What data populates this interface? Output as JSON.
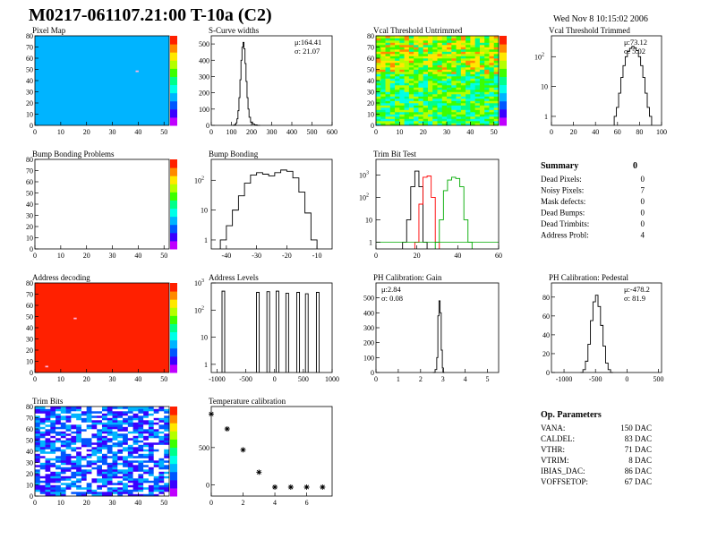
{
  "header": {
    "title": "M0217-061107.21:00 T-10a (C2)",
    "timestamp": "Wed Nov  8 10:15:02 2006"
  },
  "colors": {
    "palette": [
      "#c000ff",
      "#3a00ff",
      "#0057ff",
      "#00b4ff",
      "#00ffe8",
      "#00ff8a",
      "#3cff00",
      "#b4ff00",
      "#ffe800",
      "#ff8a00",
      "#ff2000"
    ],
    "hist_red": "#ff0000",
    "hist_green": "#00aa00"
  },
  "summary": {
    "title": "Summary",
    "total": "0",
    "rows": [
      {
        "label": "Dead Pixels:",
        "value": "0"
      },
      {
        "label": "Noisy Pixels:",
        "value": "7"
      },
      {
        "label": "Mask defects:",
        "value": "0"
      },
      {
        "label": "Dead Bumps:",
        "value": "0"
      },
      {
        "label": "Dead Trimbits:",
        "value": "0"
      },
      {
        "label": "Address Probl:",
        "value": "4"
      }
    ]
  },
  "op_params": {
    "title": "Op. Parameters",
    "rows": [
      {
        "label": "VANA:",
        "value": "150 DAC"
      },
      {
        "label": "CALDEL:",
        "value": "83 DAC"
      },
      {
        "label": "VTHR:",
        "value": "71 DAC"
      },
      {
        "label": "VTRIM:",
        "value": "8 DAC"
      },
      {
        "label": "IBIAS_DAC:",
        "value": "86 DAC"
      },
      {
        "label": "VOFFSETOP:",
        "value": "67 DAC"
      }
    ]
  },
  "chart_data": [
    {
      "id": "pixel-map",
      "type": "heatmap",
      "title": "Pixel Map",
      "xlim": [
        0,
        52
      ],
      "ylim": [
        0,
        80
      ],
      "xticks": [
        "0",
        "10",
        "20",
        "30",
        "40",
        "50"
      ],
      "yticks": [
        "0",
        "10",
        "20",
        "30",
        "40",
        "50",
        "60",
        "70",
        "80"
      ],
      "fill": "uniform",
      "base_color": "#00b4ff",
      "hot_pixels": [
        [
          39,
          48
        ]
      ],
      "color_scale": true
    },
    {
      "id": "scurve-widths",
      "type": "histogram",
      "title": "S-Curve widths",
      "log": false,
      "xlim": [
        0,
        600
      ],
      "ylim": [
        0,
        550
      ],
      "xticks": [
        "0",
        "100",
        "200",
        "300",
        "400",
        "500",
        "600"
      ],
      "yticks": [
        "0",
        "100",
        "200",
        "300",
        "400",
        "500"
      ],
      "stats": [
        "μ:164.41",
        "σ: 21.07"
      ],
      "series": [
        {
          "x": [
            110,
            120,
            125,
            130,
            135,
            140,
            145,
            150,
            155,
            160,
            165,
            170,
            175,
            180,
            185,
            190,
            200,
            210,
            220,
            235
          ],
          "y": [
            0,
            5,
            15,
            40,
            90,
            170,
            280,
            400,
            480,
            510,
            470,
            380,
            270,
            170,
            100,
            50,
            20,
            8,
            3,
            0
          ]
        }
      ]
    },
    {
      "id": "vcal-untrimmed",
      "type": "heatmap",
      "title": "Vcal Threshold Untrimmed",
      "xlim": [
        0,
        52
      ],
      "ylim": [
        0,
        80
      ],
      "xticks": [
        "0",
        "10",
        "20",
        "30",
        "40",
        "50"
      ],
      "yticks": [
        "0",
        "10",
        "20",
        "30",
        "40",
        "50",
        "60",
        "70",
        "80"
      ],
      "fill": "noise",
      "color_scale": true
    },
    {
      "id": "vcal-trimmed",
      "type": "histogram",
      "title": "Vcal Threshold Trimmed",
      "log": true,
      "xlim": [
        0,
        100
      ],
      "ylim": [
        0.5,
        500
      ],
      "xticks": [
        "0",
        "20",
        "40",
        "60",
        "80",
        "100"
      ],
      "stats": [
        "μ:73.12",
        "σ: 5.02"
      ],
      "series": [
        {
          "x": [
            58,
            60,
            62,
            64,
            66,
            68,
            70,
            72,
            74,
            76,
            78,
            80,
            82,
            84,
            86,
            88,
            90
          ],
          "y": [
            1,
            2,
            6,
            20,
            50,
            100,
            150,
            190,
            220,
            200,
            160,
            100,
            50,
            20,
            6,
            2,
            1
          ]
        }
      ]
    },
    {
      "id": "bump-problems",
      "type": "heatmap",
      "title": "Bump Bonding Problems",
      "xlim": [
        0,
        52
      ],
      "ylim": [
        0,
        80
      ],
      "xticks": [
        "0",
        "10",
        "20",
        "30",
        "40",
        "50"
      ],
      "yticks": [
        "0",
        "10",
        "20",
        "30",
        "40",
        "50",
        "60",
        "70",
        "80"
      ],
      "fill": "empty",
      "color_scale": true
    },
    {
      "id": "bump-bonding",
      "type": "histogram",
      "title": "Bump Bonding",
      "log": true,
      "xlim": [
        -45,
        -5
      ],
      "ylim": [
        0.5,
        500
      ],
      "xticks": [
        "-40",
        "-30",
        "-20",
        "-10"
      ],
      "series": [
        {
          "x": [
            -41,
            -39,
            -37,
            -35,
            -33,
            -31,
            -29,
            -27,
            -25,
            -23,
            -21,
            -19,
            -17,
            -15,
            -13,
            -11
          ],
          "y": [
            1,
            3,
            10,
            30,
            80,
            150,
            180,
            160,
            140,
            180,
            220,
            200,
            120,
            40,
            8,
            1
          ]
        }
      ]
    },
    {
      "id": "trim-bit-test",
      "type": "histogram",
      "title": "Trim Bit Test",
      "log": true,
      "xlim": [
        0,
        60
      ],
      "ylim": [
        0.5,
        5000
      ],
      "xticks": [
        "0",
        "20",
        "40",
        "60"
      ],
      "series": [
        {
          "x": [
            14,
            16,
            18,
            20,
            22,
            24
          ],
          "y": [
            1,
            10,
            300,
            1500,
            300,
            1
          ]
        },
        {
          "x": [
            20,
            22,
            24,
            26,
            28,
            30
          ],
          "y": [
            1,
            50,
            800,
            900,
            100,
            1
          ]
        },
        {
          "x": [
            30,
            32,
            34,
            36,
            38,
            40,
            42,
            44,
            46
          ],
          "y": [
            1,
            10,
            200,
            600,
            800,
            700,
            300,
            10,
            1
          ]
        }
      ]
    },
    {
      "id": "address-decoding",
      "type": "heatmap",
      "title": "Address decoding",
      "xlim": [
        0,
        52
      ],
      "ylim": [
        0,
        80
      ],
      "xticks": [
        "0",
        "10",
        "20",
        "30",
        "40",
        "50"
      ],
      "yticks": [
        "0",
        "10",
        "20",
        "30",
        "40",
        "50",
        "60",
        "70",
        "80"
      ],
      "fill": "uniform",
      "base_color": "#ff2000",
      "hot_pixels": [
        [
          15,
          48
        ],
        [
          4,
          5
        ]
      ],
      "color_scale": true
    },
    {
      "id": "address-levels",
      "type": "histogram",
      "title": "Address Levels",
      "log": true,
      "xlim": [
        -1100,
        1000
      ],
      "ylim": [
        0.5,
        1000
      ],
      "xticks": [
        "-1000",
        "-500",
        "0",
        "500",
        "1000"
      ],
      "series": [
        {
          "x": [
            -890,
            -290,
            -110,
            50,
            220,
            410,
            560,
            750
          ],
          "y": [
            500,
            450,
            480,
            500,
            420,
            450,
            400,
            450
          ]
        }
      ]
    },
    {
      "id": "ph-gain",
      "type": "histogram",
      "title": "PH Calibration: Gain",
      "log": false,
      "xlim": [
        0,
        5.5
      ],
      "ylim": [
        0,
        600
      ],
      "xticks": [
        "0",
        "1",
        "2",
        "3",
        "4",
        "5"
      ],
      "yticks": [
        "0",
        "100",
        "200",
        "300",
        "400",
        "500"
      ],
      "stats": [
        "μ:2.84",
        "σ: 0.08"
      ],
      "series": [
        {
          "x": [
            2.6,
            2.7,
            2.75,
            2.8,
            2.85,
            2.9,
            2.95,
            3.0,
            3.05
          ],
          "y": [
            0,
            20,
            100,
            380,
            480,
            400,
            150,
            30,
            0
          ]
        }
      ]
    },
    {
      "id": "ph-pedestal",
      "type": "histogram",
      "title": "PH Calibration: Pedestal",
      "log": false,
      "xlim": [
        -1200,
        550
      ],
      "ylim": [
        0,
        95
      ],
      "xticks": [
        "-1000",
        "-500",
        "0",
        "500"
      ],
      "yticks": [
        "0",
        "20",
        "40",
        "60",
        "80"
      ],
      "stats": [
        "μ:-478.2",
        "σ: 81.9"
      ],
      "series": [
        {
          "x": [
            -720,
            -680,
            -640,
            -600,
            -560,
            -520,
            -480,
            -440,
            -400,
            -360,
            -320,
            -280,
            -240
          ],
          "y": [
            0,
            3,
            12,
            30,
            55,
            75,
            82,
            70,
            50,
            28,
            10,
            3,
            0
          ]
        }
      ]
    },
    {
      "id": "trim-bits",
      "type": "heatmap",
      "title": "Trim Bits",
      "xlim": [
        0,
        52
      ],
      "ylim": [
        0,
        80
      ],
      "xticks": [
        "0",
        "10",
        "20",
        "30",
        "40",
        "50"
      ],
      "yticks": [
        "0",
        "10",
        "20",
        "30",
        "40",
        "50",
        "60",
        "70",
        "80"
      ],
      "fill": "trim",
      "color_scale": true
    },
    {
      "id": "temperature-calibration",
      "type": "scatter",
      "title": "Temperature calibration",
      "xlim": [
        0,
        7.6
      ],
      "ylim": [
        -150,
        1050
      ],
      "xticks": [
        "0",
        "2",
        "4",
        "6"
      ],
      "yticks": [
        "0",
        "500"
      ],
      "series": [
        {
          "x": [
            0,
            1,
            2,
            3,
            4,
            5,
            6,
            7
          ],
          "y": [
            950,
            750,
            470,
            170,
            -30,
            -30,
            -30,
            -30
          ]
        }
      ]
    }
  ]
}
